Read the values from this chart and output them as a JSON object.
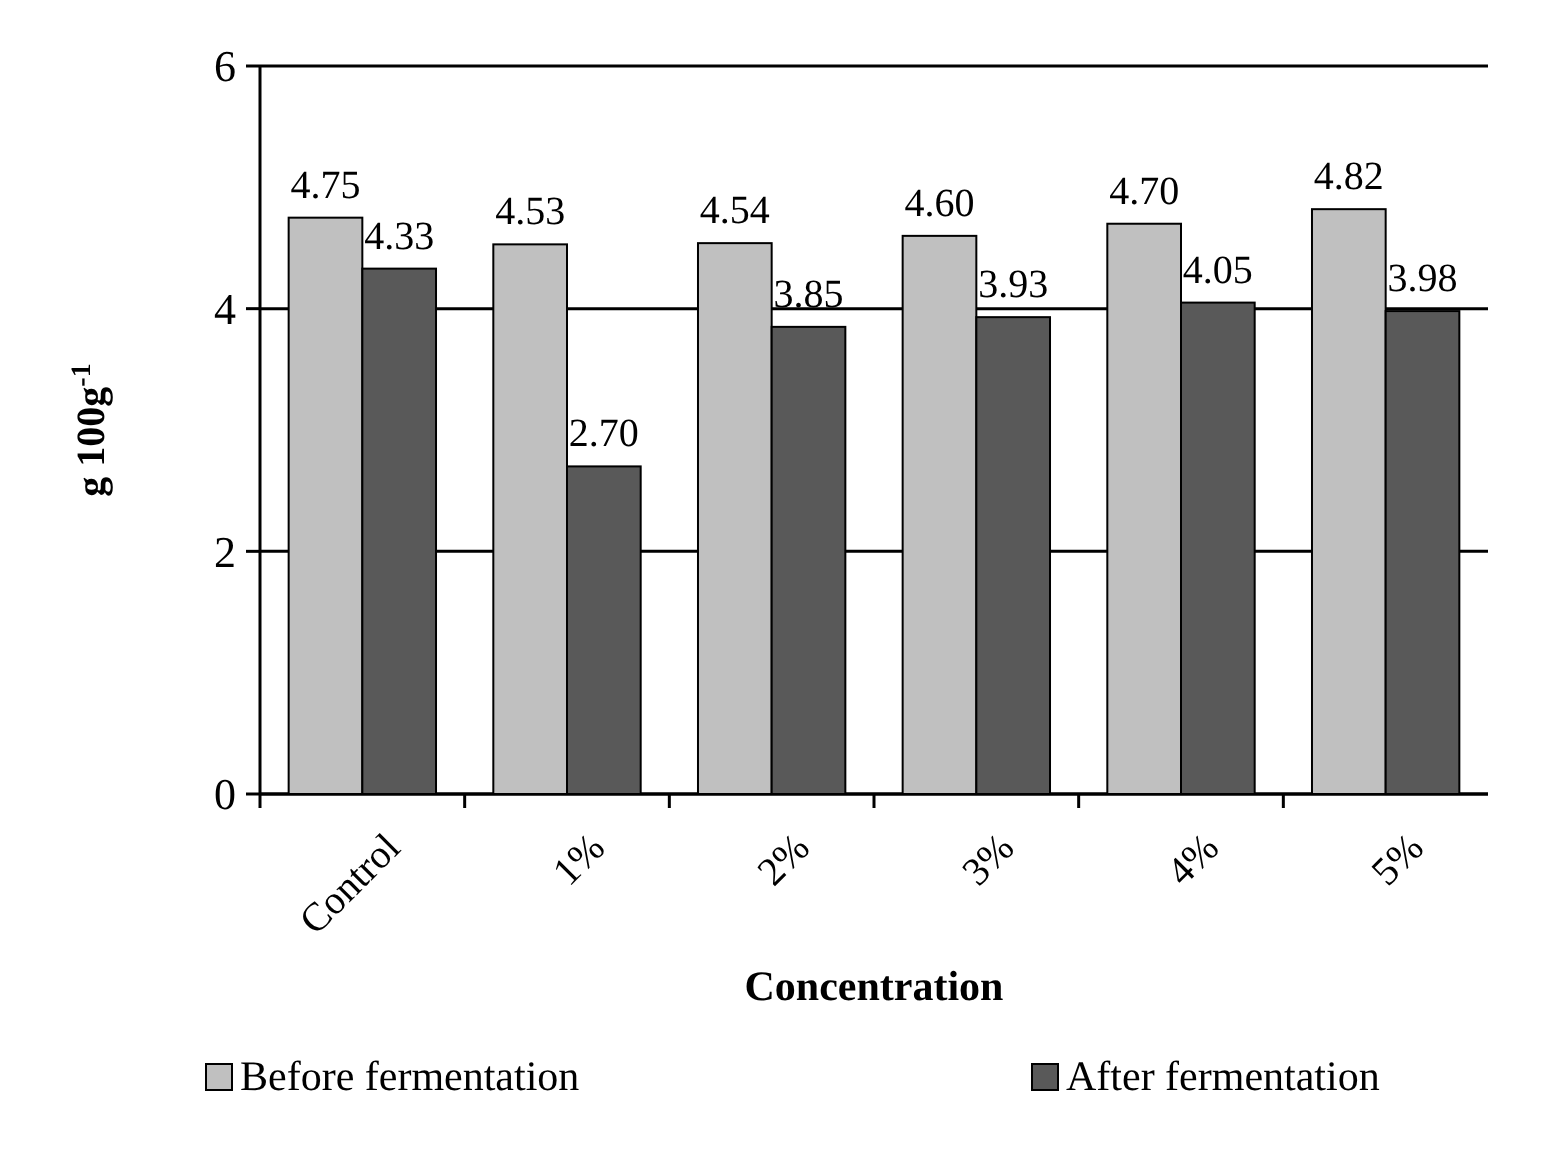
{
  "chart_data": {
    "type": "bar",
    "xlabel": "Concentration",
    "ylabel": "g 100g$^{-1}$",
    "categories": [
      "Control",
      "1%",
      "2%",
      "3%",
      "4%",
      "5%"
    ],
    "series": [
      {
        "name": "Before fermentation",
        "color": "#c0c0c0",
        "values": [
          4.75,
          4.53,
          4.54,
          4.6,
          4.7,
          4.82
        ],
        "value_labels": [
          "4.75",
          "4.53",
          "4.54",
          "4.60",
          "4.70",
          "4.82"
        ]
      },
      {
        "name": "After fermentation",
        "color": "#595959",
        "values": [
          4.33,
          2.7,
          3.85,
          3.93,
          4.05,
          3.98
        ],
        "value_labels": [
          "4.33",
          "2.70",
          "3.85",
          "3.93",
          "4.05",
          "3.98"
        ]
      }
    ],
    "ylim": [
      0,
      6
    ],
    "yticks": [
      0,
      2,
      4,
      6
    ],
    "grid": "y",
    "legend": "bottom"
  }
}
